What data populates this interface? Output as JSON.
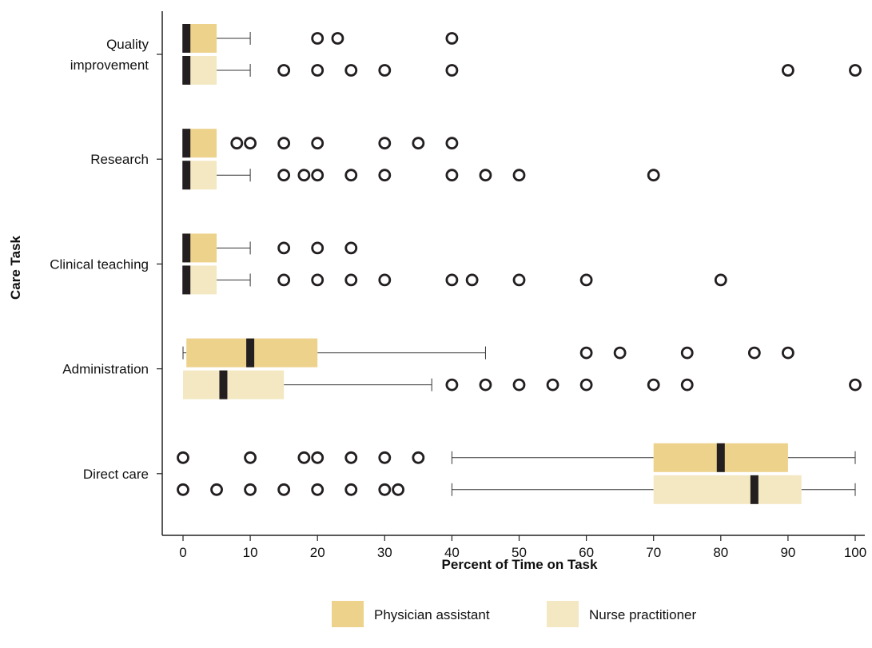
{
  "chart_data": {
    "type": "boxplot",
    "orientation": "horizontal",
    "title": "",
    "xlabel": "Percent of Time on Task",
    "ylabel": "Care Task",
    "xlim": [
      0,
      100
    ],
    "xticks": [
      "0",
      "10",
      "20",
      "30",
      "40",
      "50",
      "60",
      "70",
      "80",
      "90",
      "100"
    ],
    "categories": [
      "Quality\nimprovement",
      "Research",
      "Clinical teaching",
      "Administration",
      "Direct care"
    ],
    "legend_position": "bottom",
    "series": [
      {
        "name": "Physician assistant",
        "color": "#EDD28C",
        "boxes": [
          {
            "category": "Quality\nimprovement",
            "whisker_low": 0,
            "q1": 0,
            "median": 0.5,
            "q3": 5,
            "whisker_high": 10,
            "outliers": [
              20,
              23,
              40
            ]
          },
          {
            "category": "Research",
            "whisker_low": 0,
            "q1": 0,
            "median": 0.5,
            "q3": 5,
            "whisker_high": 5,
            "outliers": [
              8,
              10,
              15,
              20,
              30,
              35,
              40
            ]
          },
          {
            "category": "Clinical teaching",
            "whisker_low": 0,
            "q1": 0,
            "median": 0.5,
            "q3": 5,
            "whisker_high": 10,
            "outliers": [
              15,
              20,
              25
            ]
          },
          {
            "category": "Administration",
            "whisker_low": 0,
            "q1": 0.5,
            "median": 10,
            "q3": 20,
            "whisker_high": 45,
            "outliers": [
              60,
              65,
              75,
              85,
              90
            ]
          },
          {
            "category": "Direct care",
            "whisker_low": 40,
            "q1": 70,
            "median": 80,
            "q3": 90,
            "whisker_high": 100,
            "outliers": [
              0,
              10,
              18,
              20,
              25,
              30,
              35
            ]
          }
        ]
      },
      {
        "name": "Nurse practitioner",
        "color": "#F3E8C2",
        "boxes": [
          {
            "category": "Quality\nimprovement",
            "whisker_low": 0,
            "q1": 0,
            "median": 0.5,
            "q3": 5,
            "whisker_high": 10,
            "outliers": [
              15,
              20,
              25,
              30,
              40,
              90,
              100
            ]
          },
          {
            "category": "Research",
            "whisker_low": 0,
            "q1": 0,
            "median": 0.5,
            "q3": 5,
            "whisker_high": 10,
            "outliers": [
              15,
              18,
              20,
              25,
              30,
              40,
              45,
              50,
              70
            ]
          },
          {
            "category": "Clinical teaching",
            "whisker_low": 0,
            "q1": 0,
            "median": 0.5,
            "q3": 5,
            "whisker_high": 10,
            "outliers": [
              15,
              20,
              25,
              30,
              40,
              43,
              50,
              60,
              80
            ]
          },
          {
            "category": "Administration",
            "whisker_low": 0,
            "q1": 0,
            "median": 6,
            "q3": 15,
            "whisker_high": 37,
            "outliers": [
              40,
              45,
              50,
              55,
              60,
              70,
              75,
              100
            ]
          },
          {
            "category": "Direct care",
            "whisker_low": 40,
            "q1": 70,
            "median": 85,
            "q3": 92,
            "whisker_high": 100,
            "outliers": [
              0,
              5,
              10,
              15,
              20,
              25,
              30,
              32
            ]
          }
        ]
      }
    ]
  }
}
